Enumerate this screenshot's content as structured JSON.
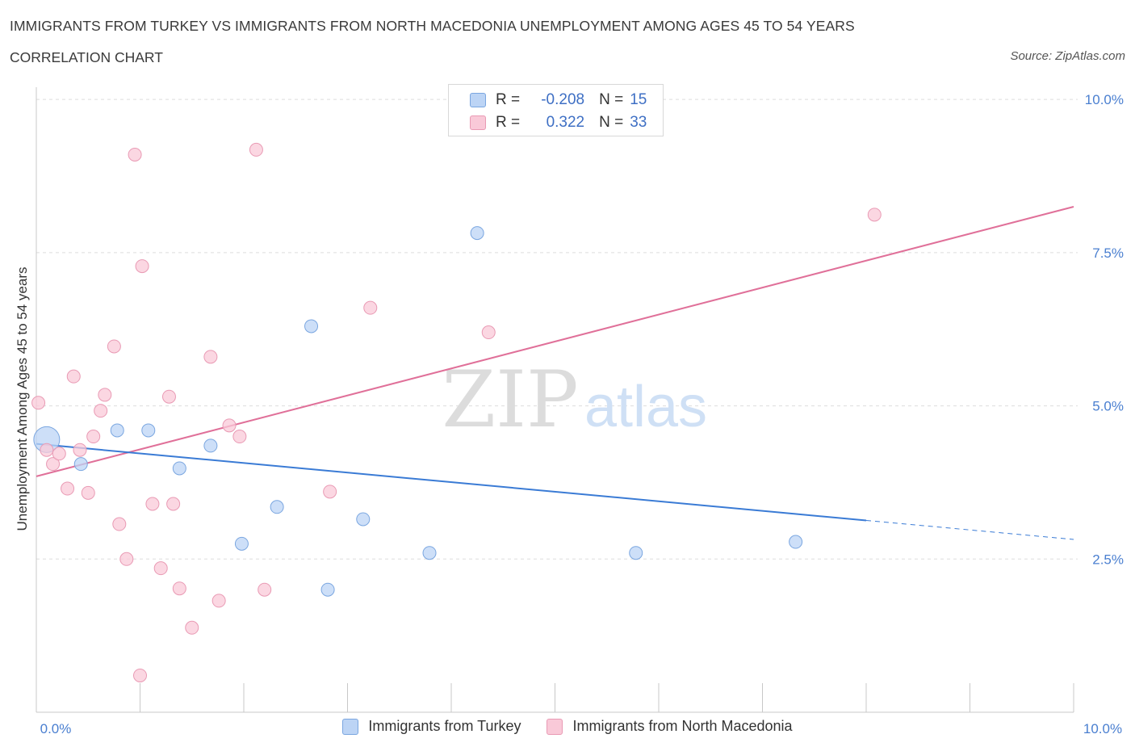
{
  "header": {
    "title": "IMMIGRANTS FROM TURKEY VS IMMIGRANTS FROM NORTH MACEDONIA UNEMPLOYMENT AMONG AGES 45 TO 54 YEARS",
    "subtitle": "CORRELATION CHART",
    "source": "Source: ZipAtlas.com"
  },
  "watermark": {
    "zip": "ZIP",
    "atlas": "atlas"
  },
  "legend": {
    "turkey": {
      "r_label": "R =",
      "r_value": "-0.208",
      "n_label": "N =",
      "n_value": "15"
    },
    "macedonia": {
      "r_label": "R =",
      "r_value": "0.322",
      "n_label": "N =",
      "n_value": "33"
    }
  },
  "bottom_legend": {
    "turkey": "Immigrants from Turkey",
    "macedonia": "Immigrants from North Macedonia"
  },
  "chart_data": {
    "type": "scatter",
    "title": "IMMIGRANTS FROM TURKEY VS IMMIGRANTS FROM NORTH MACEDONIA UNEMPLOYMENT AMONG AGES 45 TO 54 YEARS",
    "xlabel": "",
    "ylabel": "Unemployment Among Ages 45 to 54 years",
    "xlim": [
      0,
      10
    ],
    "ylim": [
      0,
      10.2
    ],
    "x_tick_labels": [
      "0.0%",
      "10.0%"
    ],
    "y_ticks": [
      {
        "value": 2.5,
        "label": "2.5%"
      },
      {
        "value": 5.0,
        "label": "5.0%"
      },
      {
        "value": 7.5,
        "label": "7.5%"
      },
      {
        "value": 10.0,
        "label": "10.0%"
      }
    ],
    "colors": {
      "turkey_fill": "#bcd4f5",
      "turkey_stroke": "#7aa6e0",
      "turkey_line": "#3a7bd5",
      "macedonia_fill": "#f9c9d8",
      "macedonia_stroke": "#e99ab4",
      "macedonia_line": "#e07099"
    },
    "series": [
      {
        "name": "Immigrants from Turkey",
        "key": "turkey",
        "points": [
          {
            "x": 0.1,
            "y": 4.45,
            "size": "large"
          },
          {
            "x": 0.43,
            "y": 4.05
          },
          {
            "x": 0.78,
            "y": 4.6
          },
          {
            "x": 1.08,
            "y": 4.6
          },
          {
            "x": 1.38,
            "y": 3.98
          },
          {
            "x": 1.68,
            "y": 4.35
          },
          {
            "x": 1.98,
            "y": 2.75
          },
          {
            "x": 2.32,
            "y": 3.35
          },
          {
            "x": 2.65,
            "y": 6.3
          },
          {
            "x": 2.81,
            "y": 2.0
          },
          {
            "x": 3.15,
            "y": 3.15
          },
          {
            "x": 3.79,
            "y": 2.6
          },
          {
            "x": 4.25,
            "y": 7.82
          },
          {
            "x": 5.78,
            "y": 2.6
          },
          {
            "x": 7.32,
            "y": 2.78
          }
        ],
        "trend": {
          "x_start": 0.0,
          "y_start": 4.38,
          "x_solid_end": 8.0,
          "y_solid_end": 3.13,
          "x_end": 10.0,
          "y_end": 2.82
        }
      },
      {
        "name": "Immigrants from North Macedonia",
        "key": "macedonia",
        "points": [
          {
            "x": 0.02,
            "y": 5.05
          },
          {
            "x": 0.1,
            "y": 4.28
          },
          {
            "x": 0.16,
            "y": 4.05
          },
          {
            "x": 0.22,
            "y": 4.22
          },
          {
            "x": 0.3,
            "y": 3.65
          },
          {
            "x": 0.36,
            "y": 5.48
          },
          {
            "x": 0.42,
            "y": 4.28
          },
          {
            "x": 0.5,
            "y": 3.58
          },
          {
            "x": 0.55,
            "y": 4.5
          },
          {
            "x": 0.62,
            "y": 4.92
          },
          {
            "x": 0.66,
            "y": 5.18
          },
          {
            "x": 0.75,
            "y": 5.97
          },
          {
            "x": 0.8,
            "y": 3.07
          },
          {
            "x": 0.87,
            "y": 2.5
          },
          {
            "x": 0.95,
            "y": 9.1
          },
          {
            "x": 1.02,
            "y": 7.28
          },
          {
            "x": 1.0,
            "y": 0.6
          },
          {
            "x": 1.12,
            "y": 3.4
          },
          {
            "x": 1.2,
            "y": 2.35
          },
          {
            "x": 1.28,
            "y": 5.15
          },
          {
            "x": 1.32,
            "y": 3.4
          },
          {
            "x": 1.38,
            "y": 2.02
          },
          {
            "x": 1.5,
            "y": 1.38
          },
          {
            "x": 1.68,
            "y": 5.8
          },
          {
            "x": 1.76,
            "y": 1.82
          },
          {
            "x": 1.86,
            "y": 4.68
          },
          {
            "x": 1.96,
            "y": 4.5
          },
          {
            "x": 2.12,
            "y": 9.18
          },
          {
            "x": 2.2,
            "y": 2.0
          },
          {
            "x": 2.83,
            "y": 3.6
          },
          {
            "x": 3.22,
            "y": 6.6
          },
          {
            "x": 4.36,
            "y": 6.2
          },
          {
            "x": 8.08,
            "y": 8.12
          }
        ],
        "trend": {
          "x_start": 0.0,
          "y_start": 3.85,
          "x_end": 10.0,
          "y_end": 8.25
        }
      }
    ]
  }
}
